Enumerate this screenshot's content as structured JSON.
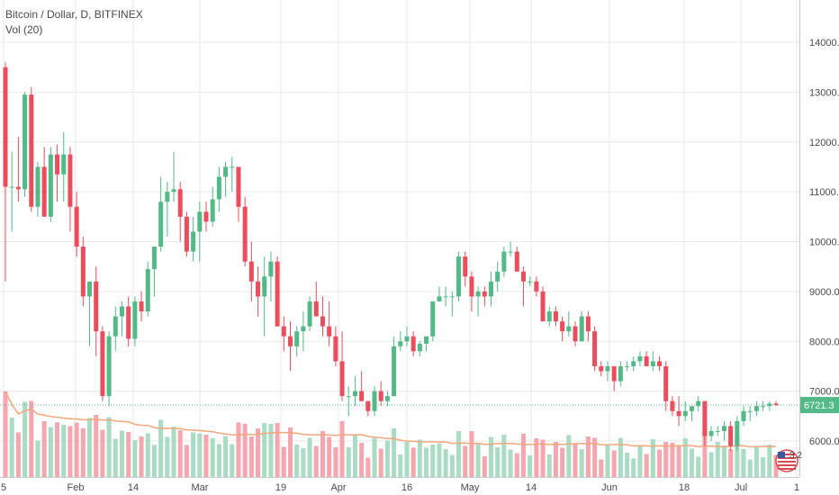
{
  "legend": {
    "symbol_line": "Bitcoin / Dollar, D, BITFINEX",
    "volume_line": "Vol (20)"
  },
  "colors": {
    "up": "#53b987",
    "down": "#eb4d5c",
    "up_volume": "#a9dcc3",
    "down_volume": "#f5a6ae",
    "volume_ma": "#f3a77b",
    "last_price_line": "#53b987",
    "grid": "#e9eaeb"
  },
  "chart_data": {
    "type": "candlestick",
    "y_axis": {
      "ticks": [
        "14000.0",
        "13000.0",
        "12000.0",
        "11000.0",
        "10000.0",
        "9000.0",
        "8000.0",
        "7000.0",
        "6000.0"
      ],
      "ylim": [
        5350,
        15000
      ]
    },
    "x_axis": {
      "ticks": [
        "5",
        "Feb",
        "14",
        "Mar",
        "19",
        "Apr",
        "16",
        "May",
        "14",
        "Jun",
        "18",
        "Jul",
        "1"
      ]
    },
    "last_price": "6721.3",
    "volume_label": "3.2",
    "candles": [
      [
        13500,
        13600,
        9200,
        11100
      ],
      [
        11100,
        11800,
        10200,
        11100
      ],
      [
        11100,
        12100,
        10800,
        11050
      ],
      [
        11050,
        13000,
        10900,
        12950
      ],
      [
        12950,
        13100,
        10600,
        10700
      ],
      [
        10700,
        11600,
        10500,
        11500
      ],
      [
        11500,
        11900,
        10500,
        10500
      ],
      [
        10500,
        11900,
        10400,
        11750
      ],
      [
        11750,
        11950,
        10800,
        11350
      ],
      [
        11350,
        12200,
        10800,
        11750
      ],
      [
        11750,
        11900,
        10200,
        10700
      ],
      [
        10700,
        11000,
        9700,
        9900
      ],
      [
        9900,
        10100,
        8700,
        8900
      ],
      [
        8900,
        9200,
        7900,
        9200
      ],
      [
        9200,
        9500,
        7700,
        8200
      ],
      [
        8200,
        8300,
        6800,
        6900
      ],
      [
        6900,
        8200,
        6700,
        8100
      ],
      [
        8100,
        8700,
        7800,
        8500
      ],
      [
        8500,
        8800,
        8100,
        8700
      ],
      [
        8700,
        8900,
        7900,
        8050
      ],
      [
        8050,
        8900,
        7900,
        8800
      ],
      [
        8800,
        9000,
        8400,
        8600
      ],
      [
        8600,
        9600,
        8500,
        9450
      ],
      [
        9450,
        9850,
        8900,
        9900
      ],
      [
        9900,
        11300,
        9800,
        10800
      ],
      [
        10800,
        11200,
        10100,
        11000
      ],
      [
        11000,
        11800,
        10800,
        11050
      ],
      [
        11050,
        11200,
        10000,
        10500
      ],
      [
        10500,
        10600,
        9700,
        9800
      ],
      [
        9800,
        10500,
        9600,
        10200
      ],
      [
        10200,
        10800,
        9600,
        10600
      ],
      [
        10600,
        10800,
        10200,
        10400
      ],
      [
        10400,
        11100,
        10300,
        10850
      ],
      [
        10850,
        11500,
        10600,
        11300
      ],
      [
        11300,
        11600,
        10900,
        11500
      ],
      [
        11500,
        11700,
        11000,
        11500
      ],
      [
        11500,
        11500,
        10400,
        10700
      ],
      [
        10700,
        10900,
        9500,
        9600
      ],
      [
        9600,
        10000,
        8800,
        9200
      ],
      [
        9200,
        9500,
        8500,
        8900
      ],
      [
        8900,
        9700,
        8100,
        9300
      ],
      [
        9300,
        9800,
        8800,
        9600
      ],
      [
        9600,
        9700,
        8300,
        8300
      ],
      [
        8300,
        8500,
        7800,
        8100
      ],
      [
        8100,
        8400,
        7400,
        7900
      ],
      [
        7900,
        8300,
        7700,
        8200
      ],
      [
        8200,
        8600,
        7800,
        8300
      ],
      [
        8300,
        8900,
        8200,
        8800
      ],
      [
        8800,
        9200,
        8500,
        8500
      ],
      [
        8500,
        8900,
        8100,
        8300
      ],
      [
        8300,
        8800,
        7900,
        8100
      ],
      [
        8100,
        8300,
        7500,
        7600
      ],
      [
        7600,
        8200,
        6800,
        6900
      ],
      [
        6900,
        7100,
        6500,
        6900
      ],
      [
        6900,
        7300,
        6700,
        7000
      ],
      [
        7000,
        7400,
        6800,
        6800
      ],
      [
        6800,
        6800,
        6500,
        6600
      ],
      [
        6600,
        7100,
        6500,
        7000
      ],
      [
        7000,
        7200,
        6700,
        6800
      ],
      [
        6800,
        7000,
        6700,
        6900
      ],
      [
        6900,
        8100,
        6900,
        7900
      ],
      [
        7900,
        8200,
        7800,
        8000
      ],
      [
        8000,
        8300,
        7900,
        8100
      ],
      [
        8100,
        8200,
        7700,
        7800
      ],
      [
        7800,
        8000,
        7700,
        7950
      ],
      [
        7950,
        8100,
        7800,
        8100
      ],
      [
        8100,
        8800,
        8000,
        8800
      ],
      [
        8800,
        9100,
        8800,
        8900
      ],
      [
        8900,
        9100,
        8700,
        8900
      ],
      [
        8900,
        9000,
        8500,
        8900
      ],
      [
        8900,
        9800,
        8800,
        9700
      ],
      [
        9700,
        9800,
        9100,
        9300
      ],
      [
        9300,
        9400,
        8600,
        8900
      ],
      [
        8900,
        9100,
        8500,
        9000
      ],
      [
        9000,
        9100,
        8700,
        8900
      ],
      [
        8900,
        9400,
        8700,
        9200
      ],
      [
        9200,
        9600,
        9000,
        9400
      ],
      [
        9400,
        9900,
        9300,
        9800
      ],
      [
        9800,
        10000,
        9700,
        9800
      ],
      [
        9800,
        9900,
        9400,
        9400
      ],
      [
        9400,
        9500,
        8700,
        9200
      ],
      [
        9200,
        9300,
        9100,
        9200
      ],
      [
        9200,
        9300,
        8900,
        9000
      ],
      [
        9000,
        9100,
        8400,
        8400
      ],
      [
        8400,
        8700,
        8300,
        8600
      ],
      [
        8600,
        8700,
        8300,
        8400
      ],
      [
        8400,
        8500,
        8000,
        8200
      ],
      [
        8200,
        8600,
        8100,
        8300
      ],
      [
        8300,
        8400,
        7900,
        8000
      ],
      [
        8000,
        8600,
        8000,
        8500
      ],
      [
        8500,
        8600,
        8000,
        8200
      ],
      [
        8200,
        8300,
        7400,
        7500
      ],
      [
        7500,
        7600,
        7300,
        7400
      ],
      [
        7400,
        7600,
        7200,
        7500
      ],
      [
        7500,
        7500,
        7000,
        7200
      ],
      [
        7200,
        7600,
        7100,
        7500
      ],
      [
        7500,
        7600,
        7400,
        7500
      ],
      [
        7500,
        7700,
        7400,
        7600
      ],
      [
        7600,
        7800,
        7500,
        7700
      ],
      [
        7700,
        7800,
        7500,
        7500
      ],
      [
        7500,
        7800,
        7400,
        7600
      ],
      [
        7600,
        7700,
        7400,
        7500
      ],
      [
        7500,
        7600,
        6600,
        6800
      ],
      [
        6800,
        6900,
        6500,
        6600
      ],
      [
        6600,
        6900,
        6300,
        6500
      ],
      [
        6500,
        6800,
        6400,
        6600
      ],
      [
        6600,
        6700,
        6400,
        6700
      ],
      [
        6700,
        6900,
        6600,
        6800
      ],
      [
        6800,
        6800,
        5900,
        6100
      ],
      [
        6100,
        6300,
        6000,
        6200
      ],
      [
        6200,
        6300,
        6100,
        6200
      ],
      [
        6200,
        6400,
        6000,
        6300
      ],
      [
        6300,
        6400,
        5800,
        5900
      ],
      [
        5900,
        6500,
        5800,
        6400
      ],
      [
        6400,
        6700,
        6300,
        6600
      ],
      [
        6600,
        6700,
        6400,
        6600
      ],
      [
        6600,
        6800,
        6500,
        6700
      ],
      [
        6700,
        6800,
        6600,
        6700
      ],
      [
        6700,
        6800,
        6600,
        6750
      ],
      [
        6750,
        6800,
        6700,
        6721
      ]
    ],
    "volume_ma_label": "Vol (20)"
  }
}
